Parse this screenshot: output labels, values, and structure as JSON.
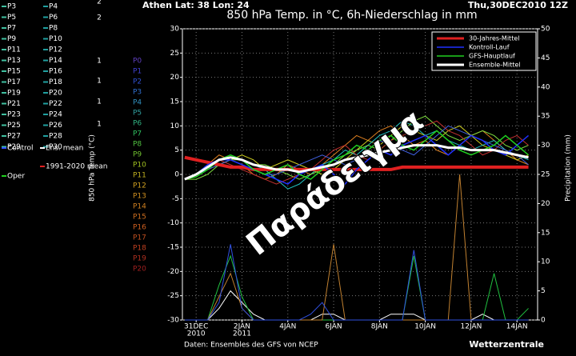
{
  "chart_data": {
    "type": "line",
    "location": "Athen  Lat: 38 Lon: 24",
    "title": "850 hPa Temp. in °C, 6h-Niederschlag in mm",
    "date": "Thu,30DEC2010 12Z",
    "source": "Daten: Ensembles des GFS von NCEP",
    "credit": "Wetterzentrale",
    "watermark": "Παράδειγμα",
    "ylabel": "850 hPa Temp (°C)",
    "y2label": "Precipitation (mm)",
    "grid": true,
    "legend_position": "upper right",
    "xlim": [
      -0.6,
      14.9
    ],
    "ylim": [
      -30,
      30
    ],
    "y2lim": [
      0,
      50
    ],
    "xticks": [
      {
        "value": 0,
        "label": "31DEC"
      },
      {
        "value": 2,
        "label": "2JAN"
      },
      {
        "value": 4,
        "label": "4JAN"
      },
      {
        "value": 6,
        "label": "6JAN"
      },
      {
        "value": 8,
        "label": "8JAN"
      },
      {
        "value": 10,
        "label": "10JAN"
      },
      {
        "value": 12,
        "label": "12JAN"
      },
      {
        "value": 14,
        "label": "14JAN"
      }
    ],
    "xtick_years": [
      {
        "value": 0,
        "label": "2010"
      },
      {
        "value": 2,
        "label": "2011"
      }
    ],
    "yticks": [
      -30,
      -25,
      -20,
      -15,
      -10,
      -5,
      0,
      5,
      10,
      15,
      20,
      25,
      30
    ],
    "y2ticks": [
      0,
      5,
      10,
      15,
      20,
      25,
      30,
      35,
      40,
      45,
      50
    ],
    "x": [
      -0.5,
      0,
      0.5,
      1,
      1.5,
      2,
      2.5,
      3,
      3.5,
      4,
      4.5,
      5,
      5.5,
      6,
      6.5,
      7,
      7.5,
      8,
      8.5,
      9,
      9.5,
      10,
      10.5,
      11,
      11.5,
      12,
      12.5,
      13,
      13.5,
      14,
      14.5
    ],
    "members": [
      {
        "color": "#e08020",
        "values": [
          -1,
          0,
          2,
          4,
          3,
          2,
          0,
          -1,
          0,
          2,
          1,
          0,
          2,
          4,
          6,
          8,
          7,
          9,
          10,
          8,
          6,
          7,
          5,
          4,
          6,
          8,
          9,
          7,
          5,
          3,
          2
        ]
      },
      {
        "color": "#d0d020",
        "values": [
          -1,
          0,
          1,
          2,
          3,
          4,
          3,
          1,
          2,
          3,
          2,
          1,
          0,
          1,
          3,
          5,
          7,
          6,
          8,
          10,
          9,
          8,
          7,
          9,
          10,
          8,
          6,
          5,
          4,
          3,
          4
        ]
      },
      {
        "color": "#20c0c0",
        "values": [
          -1,
          0,
          1,
          3,
          4,
          3,
          2,
          1,
          -1,
          -3,
          -2,
          0,
          2,
          3,
          5,
          4,
          6,
          8,
          9,
          11,
          10,
          8,
          9,
          7,
          6,
          5,
          6,
          7,
          5,
          4,
          3
        ]
      },
      {
        "color": "#80e040",
        "values": [
          -1,
          -1,
          0,
          2,
          3,
          3,
          2,
          2,
          1,
          0,
          -1,
          0,
          1,
          2,
          4,
          5,
          6,
          5,
          7,
          9,
          11,
          12,
          10,
          8,
          7,
          8,
          9,
          8,
          6,
          5,
          6
        ]
      },
      {
        "color": "#c03030",
        "values": [
          -1,
          0,
          2,
          3,
          2,
          1,
          0,
          -1,
          -2,
          -1,
          0,
          1,
          3,
          5,
          6,
          4,
          3,
          5,
          7,
          8,
          9,
          10,
          11,
          9,
          8,
          6,
          4,
          5,
          7,
          8,
          6
        ]
      },
      {
        "color": "#4060e0",
        "values": [
          -1,
          0,
          1,
          2,
          3,
          2,
          1,
          0,
          0,
          1,
          2,
          3,
          4,
          3,
          2,
          3,
          5,
          7,
          6,
          5,
          4,
          6,
          8,
          10,
          9,
          8,
          7,
          6,
          5,
          4,
          2
        ]
      }
    ],
    "series": [
      {
        "name": "30-Jahres-Mittel",
        "color": "#e02020",
        "width": 4,
        "values": [
          3.5,
          3,
          2.5,
          2,
          1.5,
          1.5,
          1,
          1,
          1,
          1,
          1,
          1,
          1,
          1,
          1,
          1,
          1,
          1,
          1,
          1.5,
          1.5,
          1.5,
          1.5,
          1.5,
          1.5,
          1.5,
          1.5,
          1.5,
          1.5,
          1.5,
          1.5
        ]
      },
      {
        "name": "Kontroll-Lauf",
        "color": "#2030ff",
        "width": 1.5,
        "values": [
          -1,
          0,
          2,
          3,
          3,
          2,
          1,
          0,
          -1,
          -2,
          0,
          1,
          2,
          0,
          -2,
          1,
          3,
          5,
          4,
          6,
          7,
          8,
          6,
          4,
          6,
          8,
          7,
          5,
          4,
          6,
          8
        ]
      },
      {
        "name": "GFS-Hauptlauf",
        "color": "#20d020",
        "width": 1.5,
        "values": [
          -1,
          -0.5,
          1,
          3,
          4,
          3,
          1,
          0,
          1,
          2,
          0,
          -1,
          1,
          3,
          4,
          6,
          5,
          7,
          8,
          6,
          5,
          7,
          9,
          7,
          5,
          4,
          5,
          6,
          8,
          6,
          4
        ]
      },
      {
        "name": "Ensemble-Mittel",
        "color": "#ffffff",
        "width": 3,
        "values": [
          -1,
          0,
          1.5,
          3,
          3.5,
          3,
          2,
          1.5,
          1,
          1,
          0.5,
          1,
          1.5,
          2,
          3,
          3.5,
          4,
          4.5,
          5,
          5.5,
          6,
          6,
          6,
          5.5,
          5.5,
          5,
          5,
          5,
          4.5,
          4,
          3.5
        ]
      }
    ],
    "precip": [
      {
        "color": "#ffffff",
        "axis": "y2",
        "values": [
          0,
          0,
          0,
          2,
          5,
          3,
          1,
          0,
          0,
          0,
          0,
          0,
          1,
          1,
          0,
          0,
          0,
          0,
          1,
          1,
          1,
          0,
          0,
          0,
          0,
          0,
          1,
          0,
          0,
          0,
          0
        ]
      },
      {
        "color": "#20c040",
        "axis": "y2",
        "values": [
          0,
          0,
          0,
          6,
          11,
          4,
          0,
          0,
          0,
          0,
          0,
          0,
          0,
          0,
          0,
          0,
          0,
          0,
          0,
          0,
          11,
          0,
          0,
          0,
          0,
          0,
          0,
          8,
          0,
          0,
          2
        ]
      },
      {
        "color": "#c08030",
        "axis": "y2",
        "values": [
          0,
          0,
          0,
          4,
          8,
          2,
          0,
          0,
          0,
          0,
          0,
          0,
          0,
          13,
          0,
          0,
          0,
          0,
          0,
          0,
          0,
          0,
          0,
          0,
          25,
          0,
          0,
          0,
          0,
          0,
          0
        ]
      },
      {
        "color": "#3050e0",
        "axis": "y2",
        "values": [
          0,
          0,
          0,
          3,
          13,
          2,
          0,
          0,
          0,
          0,
          0,
          1,
          3,
          0,
          0,
          0,
          0,
          0,
          0,
          0,
          12,
          0,
          0,
          0,
          0,
          0,
          0,
          0,
          0,
          0,
          0
        ]
      }
    ],
    "side_numbers": [
      "2",
      "2",
      "1",
      "1",
      "1",
      "1"
    ],
    "left_legend": [
      {
        "name": "P3",
        "color": "#40c0a0"
      },
      {
        "name": "P4",
        "color": "#20a0a0"
      },
      {
        "name": "P5",
        "color": "#40c0a0"
      },
      {
        "name": "P6",
        "color": "#20a0a0"
      },
      {
        "name": "P7",
        "color": "#40c0a0"
      },
      {
        "name": "P8",
        "color": "#20a0a0"
      },
      {
        "name": "P9",
        "color": "#40c0a0"
      },
      {
        "name": "P10",
        "color": "#20a0a0"
      },
      {
        "name": "P11",
        "color": "#40c0a0"
      },
      {
        "name": "P12",
        "color": "#20a0a0"
      },
      {
        "name": "P13",
        "color": "#40c0a0"
      },
      {
        "name": "P14",
        "color": "#20a0a0"
      },
      {
        "name": "P15",
        "color": "#40c0a0"
      },
      {
        "name": "P16",
        "color": "#20a0a0"
      },
      {
        "name": "P17",
        "color": "#40c0a0"
      },
      {
        "name": "P18",
        "color": "#20a0a0"
      },
      {
        "name": "P19",
        "color": "#40c0a0"
      },
      {
        "name": "P20",
        "color": "#20a0a0"
      },
      {
        "name": "P21",
        "color": "#40c0a0"
      },
      {
        "name": "P22",
        "color": "#20a0a0"
      },
      {
        "name": "P23",
        "color": "#40c0a0"
      },
      {
        "name": "P24",
        "color": "#20a0a0"
      },
      {
        "name": "P25",
        "color": "#40c0a0"
      },
      {
        "name": "P26",
        "color": "#20a0a0"
      },
      {
        "name": "P27",
        "color": "#40c0a0"
      },
      {
        "name": "P28",
        "color": "#20a0a0"
      },
      {
        "name": "P29",
        "color": "#40c0a0"
      },
      {
        "name": "P30",
        "color": "#20a0a0"
      },
      {
        "name": "Control",
        "color": "#3050ff"
      },
      {
        "name": "Ens. mean",
        "color": "#ffffff"
      },
      {
        "name": "1991-2020 mean",
        "color": "#e02020"
      },
      {
        "name": "Oper",
        "color": "#20d020"
      }
    ],
    "member_labels": [
      {
        "name": "P0",
        "color": "#6040c0"
      },
      {
        "name": "P1",
        "color": "#4040d0"
      },
      {
        "name": "P2",
        "color": "#3050d0"
      },
      {
        "name": "P3",
        "color": "#3070d0"
      },
      {
        "name": "P4",
        "color": "#3090c0"
      },
      {
        "name": "P5",
        "color": "#30a0a0"
      },
      {
        "name": "P6",
        "color": "#30b080"
      },
      {
        "name": "P7",
        "color": "#30c060"
      },
      {
        "name": "P8",
        "color": "#50c040"
      },
      {
        "name": "P9",
        "color": "#70c030"
      },
      {
        "name": "P10",
        "color": "#a0c020"
      },
      {
        "name": "P11",
        "color": "#c0b020"
      },
      {
        "name": "P12",
        "color": "#d0a020"
      },
      {
        "name": "P13",
        "color": "#d09020"
      },
      {
        "name": "P14",
        "color": "#d08020"
      },
      {
        "name": "P15",
        "color": "#d07020"
      },
      {
        "name": "P16",
        "color": "#d06020"
      },
      {
        "name": "P17",
        "color": "#c05020"
      },
      {
        "name": "P18",
        "color": "#c04020"
      },
      {
        "name": "P19",
        "color": "#b03020"
      },
      {
        "name": "P20",
        "color": "#a02020"
      }
    ]
  }
}
